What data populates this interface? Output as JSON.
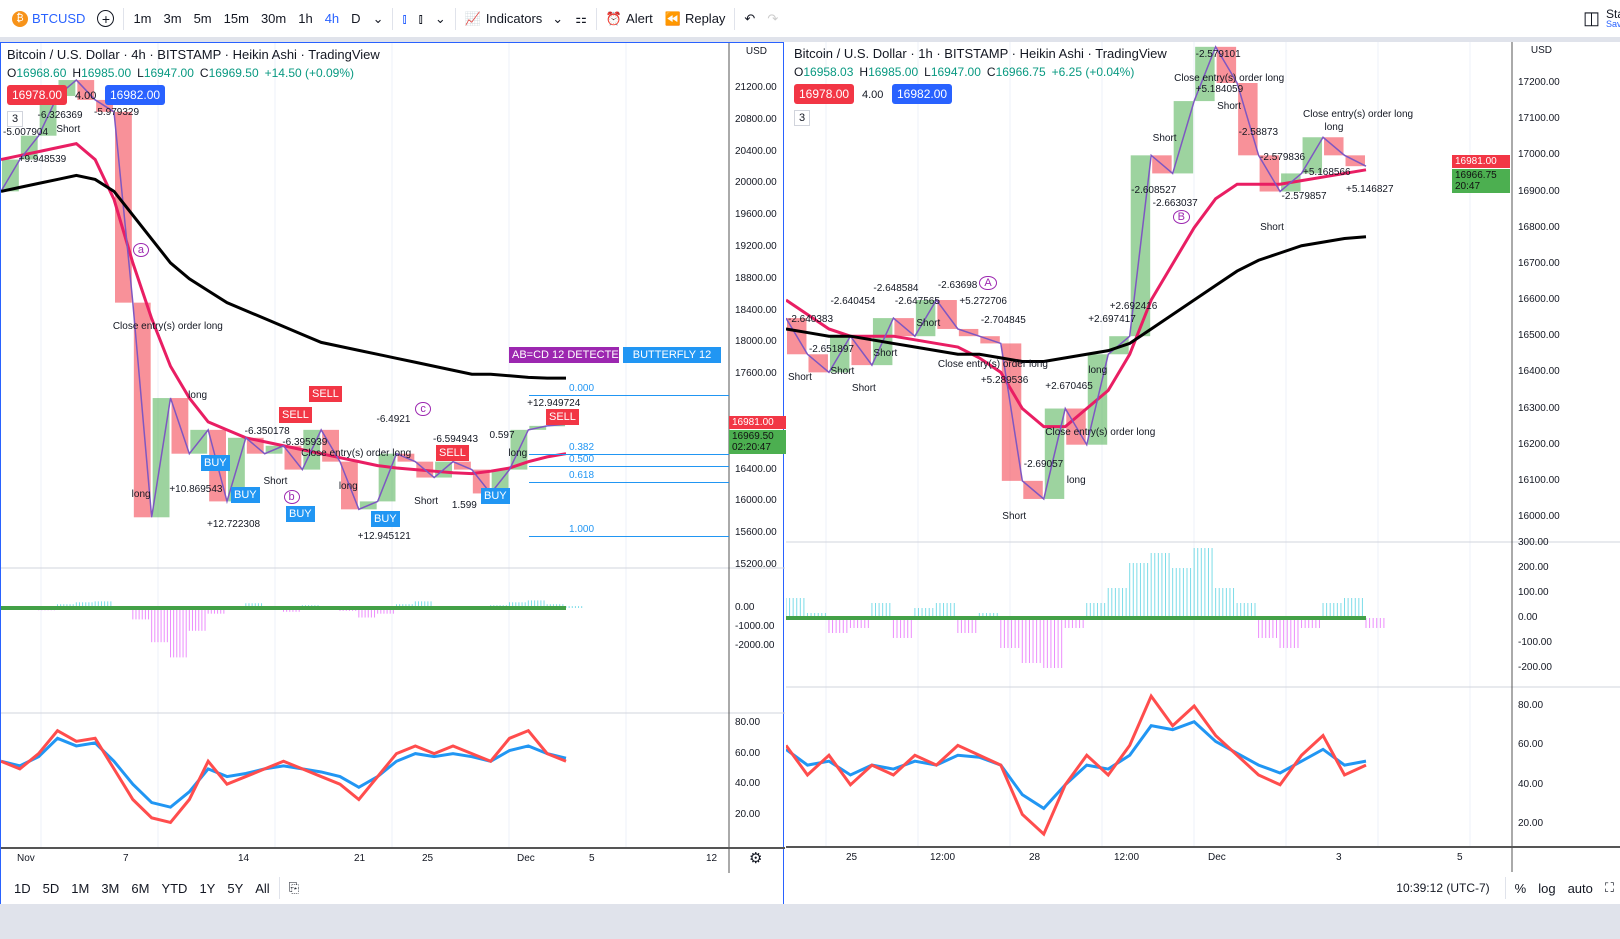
{
  "toolbar": {
    "symbol": "BTCUSD",
    "intervals": [
      "1m",
      "3m",
      "5m",
      "15m",
      "30m",
      "1h",
      "4h",
      "D"
    ],
    "active_interval": "4h",
    "indicators": "Indicators",
    "alert": "Alert",
    "replay": "Replay",
    "right_cut": "Sta",
    "right_cut2": "Sav"
  },
  "left": {
    "title": "Bitcoin / U.S. Dollar · 4h · BITSTAMP · Heikin Ashi · TradingView",
    "ohlc": {
      "o_label": "O",
      "o": "16968.60",
      "h_label": "H",
      "h": "16985.00",
      "l_label": "L",
      "l": "16947.00",
      "c_label": "C",
      "c": "16969.50",
      "chg": "+14.50 (+0.09%)"
    },
    "sell": "16978.00",
    "spread": "4.00",
    "buy": "16982.00",
    "layers": "3",
    "currency": "USD",
    "price_axis": [
      "21200.00",
      "20800.00",
      "20400.00",
      "20000.00",
      "19600.00",
      "19200.00",
      "18800.00",
      "18400.00",
      "18000.00",
      "17600.00",
      "16400.00",
      "16000.00",
      "15600.00",
      "15200.00"
    ],
    "price_tag_red": "16981.00",
    "price_tag_green": "16969.50",
    "countdown": "02:20:47",
    "osc_axis": [
      "0.00",
      "-1000.00",
      "-2000.00"
    ],
    "rsi_axis": [
      "80.00",
      "60.00",
      "40.00",
      "20.00"
    ],
    "time_axis": [
      "Nov",
      "7",
      "14",
      "21",
      "25",
      "Dec",
      "5",
      "12"
    ],
    "fib": [
      "0.000",
      "0.382",
      "0.500",
      "0.618",
      "1.000"
    ],
    "pattern_labels": [
      "AB=CD 12 DETECTED",
      "BUTTERFLY 12"
    ],
    "points": [
      "a",
      "b",
      "c"
    ],
    "annotations": [
      "-5.007904",
      "+9.948539",
      "-6.326369",
      "Short",
      "-5.979329",
      "Close entry(s) order long",
      "long",
      "+10.869543",
      "long",
      "+12.722308",
      "-6.350178",
      "Short",
      "-6.395939",
      "Close entry(s) order long",
      "long",
      "+12.945121",
      "-6.4921",
      "Short",
      "-6.594943",
      "1.599",
      "0.597",
      "long",
      "+12.949724"
    ],
    "signals": [
      "BUY",
      "BUY",
      "BUY",
      "BUY",
      "SELL",
      "SELL",
      "SELL",
      "SELL",
      "BUY"
    ],
    "series": {
      "price": [
        19900,
        20300,
        20600,
        21100,
        21300,
        21050,
        20900,
        18500,
        15800,
        17300,
        16600,
        16900,
        16000,
        16800,
        16600,
        16700,
        16400,
        16900,
        16500,
        15900,
        16000,
        16600,
        16500,
        16300,
        16500,
        16400,
        16100,
        16400,
        16900,
        16950,
        16970
      ],
      "ma_black": [
        19900,
        19950,
        20000,
        20050,
        20100,
        20050,
        19900,
        19600,
        19300,
        19000,
        18800,
        18650,
        18500,
        18400,
        18300,
        18200,
        18100,
        18000,
        17950,
        17900,
        17850,
        17800,
        17750,
        17700,
        17650,
        17600,
        17600,
        17580,
        17560,
        17550,
        17550
      ],
      "ma_red": [
        20300,
        20350,
        20400,
        20450,
        20500,
        20300,
        19800,
        19000,
        18300,
        17700,
        17300,
        17000,
        16900,
        16800,
        16750,
        16700,
        16650,
        16600,
        16550,
        16500,
        16450,
        16420,
        16400,
        16380,
        16360,
        16350,
        16380,
        16420,
        16500,
        16560,
        16600
      ],
      "osc": [
        0,
        -80,
        -120,
        200,
        300,
        350,
        100,
        -600,
        -1800,
        -2600,
        -1200,
        -300,
        100,
        250,
        -100,
        -200,
        150,
        100,
        -150,
        -500,
        -300,
        200,
        350,
        100,
        0,
        -100,
        150,
        300,
        400,
        200,
        100
      ],
      "rsi_red": [
        55,
        50,
        60,
        75,
        68,
        70,
        50,
        30,
        18,
        15,
        30,
        55,
        40,
        45,
        50,
        55,
        50,
        45,
        40,
        30,
        45,
        60,
        65,
        60,
        65,
        60,
        55,
        70,
        75,
        60,
        55
      ],
      "rsi_blue": [
        55,
        52,
        58,
        70,
        65,
        67,
        55,
        40,
        28,
        25,
        35,
        50,
        45,
        47,
        50,
        52,
        50,
        48,
        45,
        38,
        45,
        55,
        60,
        58,
        60,
        58,
        55,
        62,
        65,
        60,
        57
      ]
    }
  },
  "right": {
    "title": "Bitcoin / U.S. Dollar · 1h · BITSTAMP · Heikin Ashi · TradingView",
    "ohlc": {
      "o_label": "O",
      "o": "16958.03",
      "h_label": "H",
      "h": "16985.00",
      "l_label": "L",
      "l": "16947.00",
      "c_label": "C",
      "c": "16966.75",
      "chg": "+6.25 (+0.04%)"
    },
    "sell": "16978.00",
    "spread": "4.00",
    "buy": "16982.00",
    "layers": "3",
    "currency": "USD",
    "price_axis": [
      "17200.00",
      "17100.00",
      "17000.00",
      "16900.00",
      "16800.00",
      "16700.00",
      "16600.00",
      "16500.00",
      "16400.00",
      "16300.00",
      "16200.00",
      "16100.00",
      "16000.00"
    ],
    "price_tag_red": "16981.00",
    "price_tag_green": "16966.75",
    "countdown": "20:47",
    "osc_axis": [
      "300.00",
      "200.00",
      "100.00",
      "0.00",
      "-100.00",
      "-200.00"
    ],
    "rsi_axis": [
      "80.00",
      "60.00",
      "40.00",
      "20.00"
    ],
    "time_axis": [
      "25",
      "12:00",
      "28",
      "12:00",
      "Dec",
      "3",
      "5"
    ],
    "points": [
      "A",
      "B"
    ],
    "annotations": [
      "-2.640383",
      "Short",
      "-2.651897",
      "Short",
      "-2.640454",
      "Short",
      "-2.648584",
      "Short",
      "-2.647565",
      "Short",
      "-2.63698",
      "Close entry(s) order long",
      "+5.272706",
      "+5.289536",
      "-2.704845",
      "Short",
      "-2.69057",
      "Close entry(s) order long",
      "+2.670465",
      "long",
      "+2.697417",
      "long",
      "+2.692416",
      "-2.608527",
      "Short",
      "-2.663037",
      "Close entry(s) order long",
      "+5.184059",
      "-2.579101",
      "Short",
      "-2.58873",
      "Short",
      "-2.579836",
      "-2.579857",
      "Close entry(s) order long",
      "+5.168566",
      "long",
      "+5.146827"
    ],
    "series": {
      "price": [
        16550,
        16450,
        16400,
        16500,
        16420,
        16550,
        16500,
        16600,
        16520,
        16500,
        16480,
        16100,
        16050,
        16300,
        16200,
        16450,
        16500,
        17000,
        16950,
        17150,
        17300,
        17200,
        17000,
        16900,
        16950,
        17050,
        17000,
        16970
      ],
      "ma_black": [
        16520,
        16510,
        16500,
        16500,
        16490,
        16480,
        16470,
        16460,
        16450,
        16450,
        16440,
        16430,
        16430,
        16440,
        16450,
        16460,
        16480,
        16520,
        16560,
        16600,
        16640,
        16680,
        16710,
        16730,
        16750,
        16760,
        16770,
        16775
      ],
      "ma_red": [
        16600,
        16560,
        16520,
        16500,
        16500,
        16500,
        16490,
        16480,
        16470,
        16440,
        16400,
        16300,
        16250,
        16250,
        16300,
        16350,
        16450,
        16600,
        16700,
        16800,
        16880,
        16920,
        16920,
        16920,
        16930,
        16940,
        16950,
        16960
      ],
      "osc": [
        80,
        20,
        -60,
        -40,
        60,
        -80,
        40,
        60,
        -60,
        20,
        -120,
        -180,
        -200,
        -40,
        60,
        120,
        220,
        260,
        200,
        280,
        120,
        60,
        -80,
        -120,
        -40,
        60,
        80,
        -40
      ],
      "rsi_red": [
        60,
        45,
        55,
        40,
        50,
        45,
        55,
        50,
        60,
        55,
        50,
        25,
        15,
        40,
        55,
        45,
        60,
        85,
        70,
        80,
        65,
        55,
        45,
        40,
        55,
        65,
        45,
        50
      ],
      "rsi_blue": [
        58,
        50,
        52,
        45,
        50,
        48,
        52,
        50,
        55,
        54,
        50,
        35,
        28,
        40,
        50,
        48,
        55,
        70,
        68,
        72,
        62,
        56,
        50,
        46,
        52,
        58,
        50,
        52
      ]
    }
  },
  "bottom": {
    "ranges": [
      "1D",
      "5D",
      "1M",
      "3M",
      "6M",
      "YTD",
      "1Y",
      "5Y",
      "All"
    ],
    "time": "10:39:12 (UTC-7)",
    "pct": "%",
    "log": "log",
    "auto": "auto"
  },
  "colors": {
    "accent": "#2962ff",
    "red": "#f23645",
    "green": "#089981",
    "blue": "#2962ff",
    "rsi_red": "#ff4d4d",
    "rsi_blue": "#2196f3"
  }
}
